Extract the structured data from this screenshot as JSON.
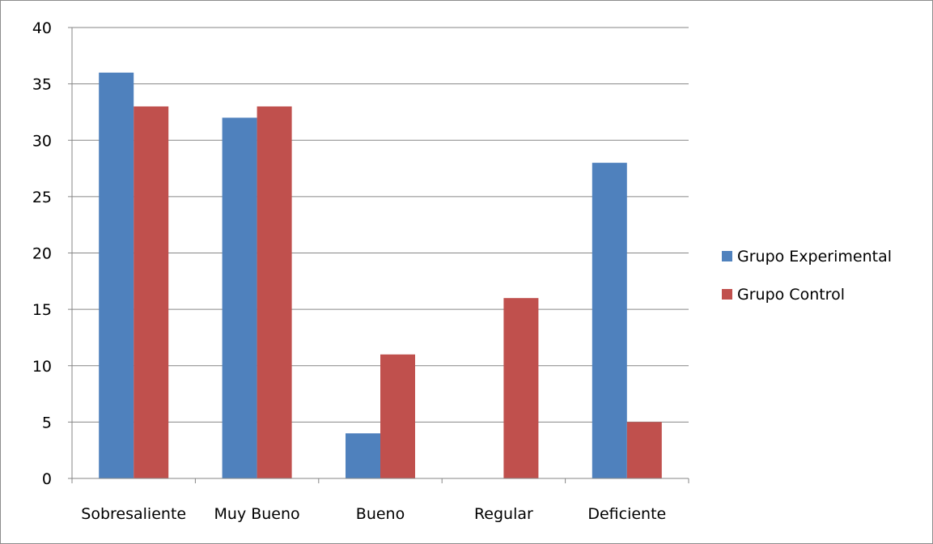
{
  "chart_data": {
    "type": "bar",
    "categories": [
      "Sobresaliente",
      "Muy Bueno",
      "Bueno",
      "Regular",
      "Deficiente"
    ],
    "series": [
      {
        "name": "Grupo Experimental",
        "values": [
          36,
          32,
          4,
          0,
          28
        ],
        "color": "#4F81BD"
      },
      {
        "name": "Grupo Control",
        "values": [
          33,
          33,
          11,
          16,
          5
        ],
        "color": "#C0504D"
      }
    ],
    "title": "",
    "xlabel": "",
    "ylabel": "",
    "ylim": [
      0,
      40
    ],
    "yticks": [
      0,
      5,
      10,
      15,
      20,
      25,
      30,
      35,
      40
    ],
    "grid": true,
    "legend_position": "right",
    "gridline_color": "#868686"
  }
}
